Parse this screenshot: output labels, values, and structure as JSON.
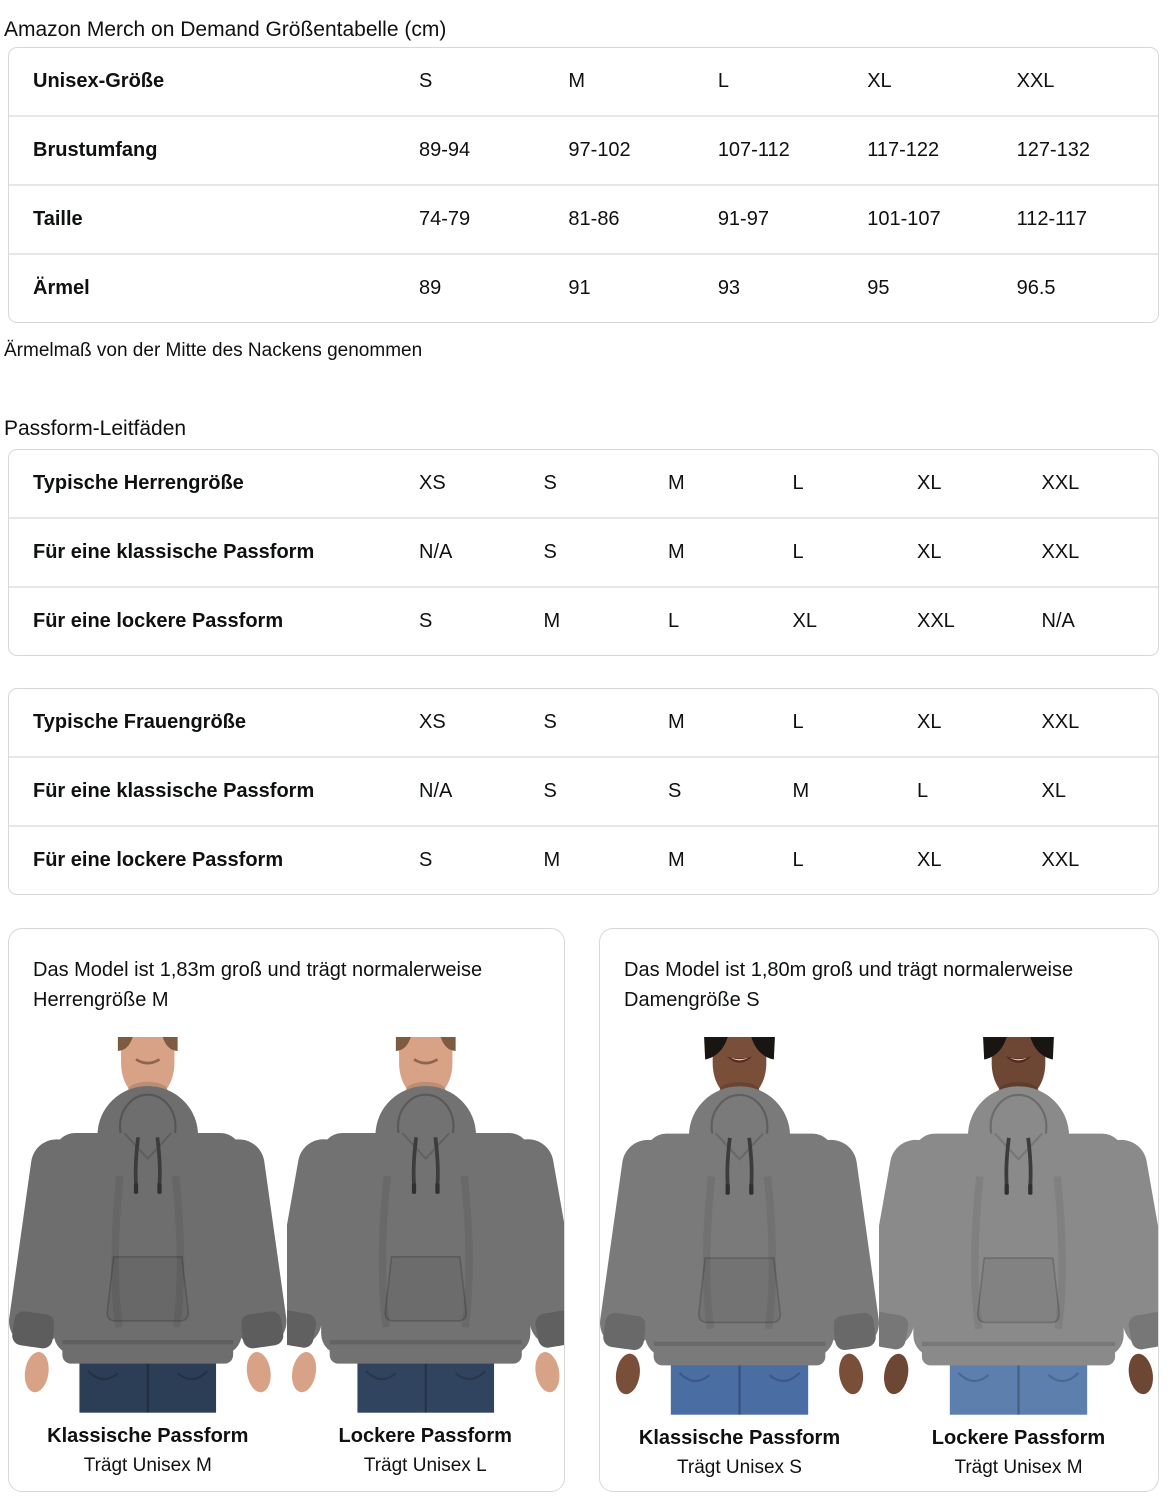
{
  "title": "Amazon Merch on Demand Größentabelle (cm)",
  "colors": {
    "text": "#0f1111",
    "border": "#d5d9d9",
    "separator": "#e7e7e7"
  },
  "size_table": {
    "rows": [
      {
        "label": "Unisex-Größe",
        "values": [
          "S",
          "M",
          "L",
          "XL",
          "XXL"
        ]
      },
      {
        "label": "Brustumfang",
        "values": [
          "89-94",
          "97-102",
          "107-112",
          "117-122",
          "127-132"
        ]
      },
      {
        "label": "Taille",
        "values": [
          "74-79",
          "81-86",
          "91-97",
          "101-107",
          "112-117"
        ]
      },
      {
        "label": "Ärmel",
        "values": [
          "89",
          "91",
          "93",
          "95",
          "96.5"
        ]
      }
    ]
  },
  "note": "Ärmelmaß von der Mitte des Nackens genommen",
  "fit_heading": "Passform-Leitfäden",
  "fit_tables": [
    {
      "rows": [
        {
          "label": "Typische Herrengröße",
          "values": [
            "XS",
            "S",
            "M",
            "L",
            "XL",
            "XXL"
          ]
        },
        {
          "label": "Für eine klassische Passform",
          "values": [
            "N/A",
            "S",
            "M",
            "L",
            "XL",
            "XXL"
          ]
        },
        {
          "label": "Für eine lockere Passform",
          "values": [
            "S",
            "M",
            "L",
            "XL",
            "XXL",
            "N/A"
          ]
        }
      ]
    },
    {
      "rows": [
        {
          "label": "Typische Frauengröße",
          "values": [
            "XS",
            "S",
            "M",
            "L",
            "XL",
            "XXL"
          ]
        },
        {
          "label": "Für eine klassische Passform",
          "values": [
            "N/A",
            "S",
            "S",
            "M",
            "L",
            "XL"
          ]
        },
        {
          "label": "Für eine lockere Passform",
          "values": [
            "S",
            "M",
            "M",
            "L",
            "XL",
            "XXL"
          ]
        }
      ]
    }
  ],
  "model_cards": [
    {
      "description": "Das Model ist 1,83m groß und trägt normalerweise Herrengröße M",
      "figures": [
        {
          "fit_label": "Klassische Passform",
          "size_label": "Trägt Unisex M",
          "person": "man",
          "fit": "classic",
          "colors": {
            "skin": "#d8a287",
            "hair": "#7d5a40",
            "hoodie": "#6e6e6e",
            "hoodie_dark": "#5d5d5d",
            "jeans": "#2c3d56"
          }
        },
        {
          "fit_label": "Lockere Passform",
          "size_label": "Trägt Unisex L",
          "person": "man",
          "fit": "loose",
          "colors": {
            "skin": "#d8a287",
            "hair": "#7d5a40",
            "hoodie": "#727272",
            "hoodie_dark": "#606060",
            "jeans": "#31445f"
          }
        }
      ]
    },
    {
      "description": "Das Model ist 1,80m groß und trägt normalerweise Damengröße S",
      "figures": [
        {
          "fit_label": "Klassische Passform",
          "size_label": "Trägt Unisex S",
          "person": "woman",
          "fit": "classic",
          "colors": {
            "skin": "#7a4f3a",
            "hair": "#181512",
            "hoodie": "#7a7a7a",
            "hoodie_dark": "#696969",
            "jeans": "#4a6da3"
          }
        },
        {
          "fit_label": "Lockere Passform",
          "size_label": "Trägt Unisex M",
          "person": "woman",
          "fit": "loose",
          "colors": {
            "skin": "#6e4734",
            "hair": "#181512",
            "hoodie": "#8a8a8a",
            "hoodie_dark": "#777777",
            "jeans": "#5c7fad"
          }
        }
      ]
    }
  ]
}
